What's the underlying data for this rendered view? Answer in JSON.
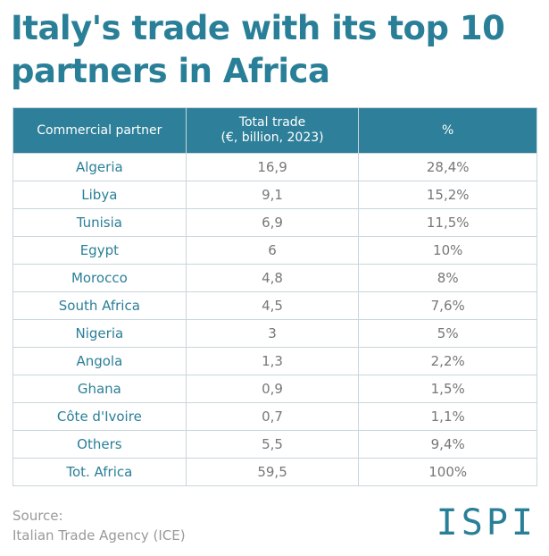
{
  "header": {
    "title": [
      "Italy's trade with its top 10",
      "partners in Africa"
    ]
  },
  "table": {
    "columns": [
      [
        "Commercial partner"
      ],
      [
        "Total trade",
        "(€, billion, 2023)"
      ],
      [
        "%"
      ]
    ],
    "rows": [
      [
        "Algeria",
        "16,9",
        "28,4%"
      ],
      [
        "Libya",
        "9,1",
        "15,2%"
      ],
      [
        "Tunisia",
        "6,9",
        "11,5%"
      ],
      [
        "Egypt",
        "6",
        "10%"
      ],
      [
        "Morocco",
        "4,8",
        "8%"
      ],
      [
        "South Africa",
        "4,5",
        "7,6%"
      ],
      [
        "Nigeria",
        "3",
        "5%"
      ],
      [
        "Angola",
        "1,3",
        "2,2%"
      ],
      [
        "Ghana",
        "0,9",
        "1,5%"
      ],
      [
        "Côte d'Ivoire",
        "0,7",
        "1,1%"
      ],
      [
        "Others",
        "5,5",
        "9,4%"
      ],
      [
        "Tot. Africa",
        "59,5",
        "100%"
      ]
    ]
  },
  "footer": {
    "source": [
      "Source:",
      "Italian Trade Agency (ICE)"
    ],
    "logo": "ISPI"
  }
}
